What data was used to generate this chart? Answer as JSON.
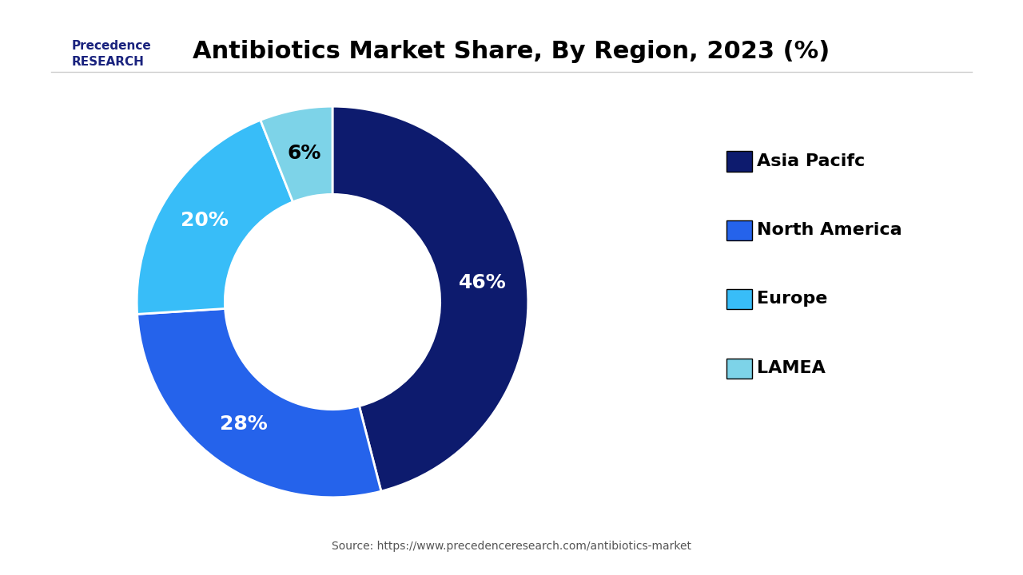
{
  "title": "Antibiotics Market Share, By Region, 2023 (%)",
  "labels": [
    "Asia Pacifc",
    "North America",
    "Europe",
    "LAMEA"
  ],
  "values": [
    46,
    28,
    20,
    6
  ],
  "colors": [
    "#0d1b6e",
    "#2563eb",
    "#38bdf8",
    "#7dd3e8"
  ],
  "pct_labels": [
    "46%",
    "28%",
    "20%",
    "6%"
  ],
  "pct_colors": [
    "white",
    "white",
    "white",
    "black"
  ],
  "source_text": "Source: https://www.precedenceresearch.com/antibiotics-market",
  "background_color": "#ffffff",
  "start_angle": 90,
  "wedge_edge_color": "white",
  "donut_width": 0.45
}
